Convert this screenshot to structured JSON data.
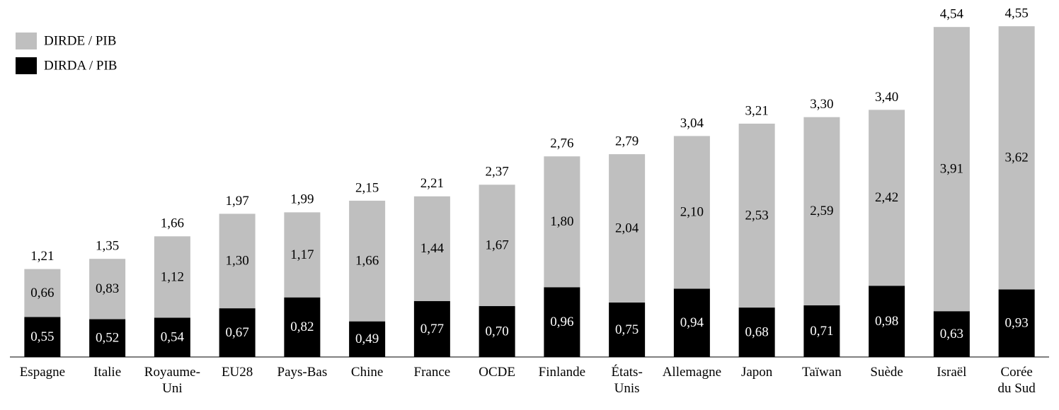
{
  "chart_data": {
    "type": "stacked-bar",
    "categories": [
      "Espagne",
      "Italie",
      "Royaume-\nUni",
      "EU28",
      "Pays-Bas",
      "Chine",
      "France",
      "OCDE",
      "Finlande",
      "États-\nUnis",
      "Allemagne",
      "Japon",
      "Taïwan",
      "Suède",
      "Israël",
      "Corée\ndu Sud"
    ],
    "series": [
      {
        "name": "DIRDA / PIB",
        "color": "#000000",
        "values": [
          0.55,
          0.52,
          0.54,
          0.67,
          0.82,
          0.49,
          0.77,
          0.7,
          0.96,
          0.75,
          0.94,
          0.68,
          0.71,
          0.98,
          0.63,
          0.93
        ],
        "value_labels": [
          "0,55",
          "0,52",
          "0,54",
          "0,67",
          "0,82",
          "0,49",
          "0,77",
          "0,70",
          "0,96",
          "0,75",
          "0,94",
          "0,68",
          "0,71",
          "0,98",
          "0,63",
          "0,93"
        ]
      },
      {
        "name": "DIRDE / PIB",
        "color": "#bfbfbf",
        "values": [
          0.66,
          0.83,
          1.12,
          1.3,
          1.17,
          1.66,
          1.44,
          1.67,
          1.8,
          2.04,
          2.1,
          2.53,
          2.59,
          2.42,
          3.91,
          3.62
        ],
        "value_labels": [
          "0,66",
          "0,83",
          "1,12",
          "1,30",
          "1,17",
          "1,66",
          "1,44",
          "1,67",
          "1,80",
          "2,04",
          "2,10",
          "2,53",
          "2,59",
          "2,42",
          "3,91",
          "3,62"
        ]
      }
    ],
    "totals": [
      1.21,
      1.35,
      1.66,
      1.97,
      1.99,
      2.15,
      2.21,
      2.37,
      2.76,
      2.79,
      3.04,
      3.21,
      3.3,
      3.4,
      4.54,
      4.55
    ],
    "total_labels": [
      "1,21",
      "1,35",
      "1,66",
      "1,97",
      "1,99",
      "2,15",
      "2,21",
      "2,37",
      "2,76",
      "2,79",
      "3,04",
      "3,21",
      "3,30",
      "3,40",
      "4,54",
      "4,55"
    ],
    "ylim": [
      0,
      4.6
    ],
    "legend": "top-left"
  }
}
